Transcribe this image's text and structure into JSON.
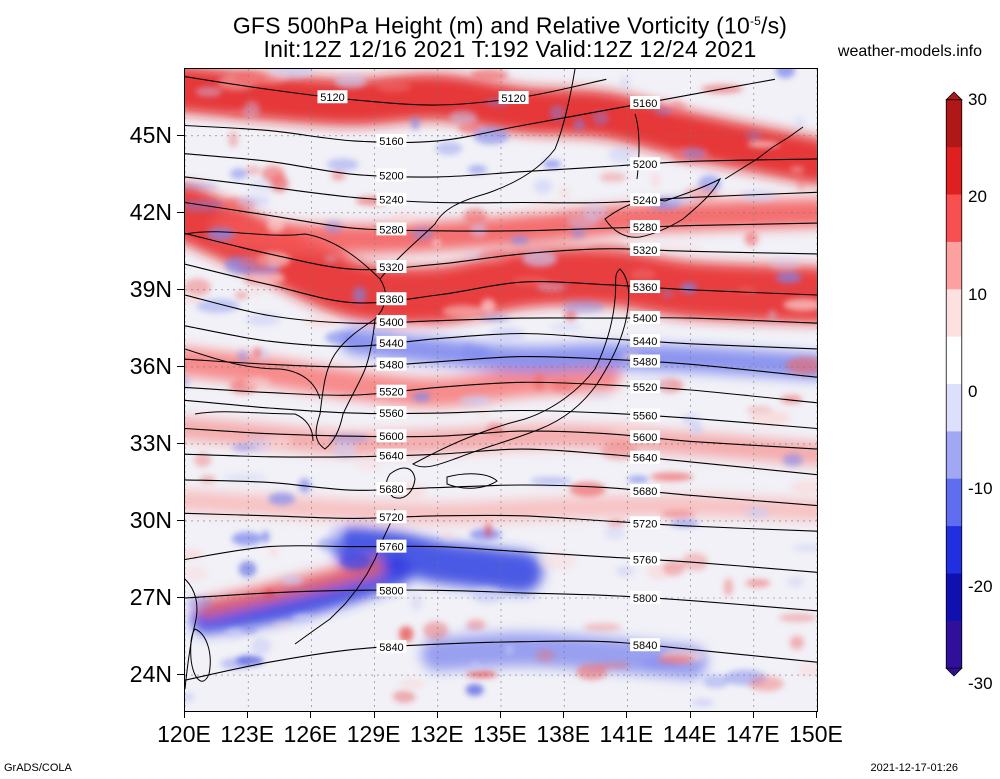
{
  "title": {
    "line1": "GFS 500hPa Height (m) and Relative Vorticity (10",
    "line1_sup": "-5",
    "line1_tail": "/s)",
    "line2": "Init:12Z 12/16 2021 T:192 Valid:12Z 12/24 2021"
  },
  "site": "weather-models.info",
  "footer": {
    "left": "GrADS/COLA",
    "right": "2021-12-17-01:26"
  },
  "axes": {
    "lat_labels": [
      "45N",
      "42N",
      "39N",
      "36N",
      "33N",
      "30N",
      "27N",
      "24N"
    ],
    "lat_values": [
      45,
      42,
      39,
      36,
      33,
      30,
      27,
      24
    ],
    "lon_labels": [
      "120E",
      "123E",
      "126E",
      "129E",
      "132E",
      "135E",
      "138E",
      "141E",
      "144E",
      "147E",
      "150E"
    ],
    "lon_values": [
      120,
      123,
      126,
      129,
      132,
      135,
      138,
      141,
      144,
      147,
      150
    ],
    "lat_range": [
      22.6,
      47.6
    ],
    "lon_range": [
      120,
      150
    ]
  },
  "colorbar": {
    "labels": [
      "30",
      "20",
      "10",
      "0",
      "-10",
      "-20",
      "-30"
    ],
    "values": [
      30,
      20,
      10,
      0,
      -10,
      -20,
      -30
    ],
    "colors_top_to_bottom": [
      "#b01818",
      "#e02020",
      "#f85050",
      "#fca0a0",
      "#fde0e0",
      "#ffffff",
      "#dde0fa",
      "#a0a8f4",
      "#5f6ef0",
      "#2030e0",
      "#1010b0",
      "#30109a"
    ]
  },
  "contours": [
    {
      "label": "5120",
      "lat": [
        47.3,
        46.8,
        46.4,
        46.2,
        46.5,
        47.2
      ],
      "lon": [
        120,
        124,
        128,
        132,
        136,
        140
      ]
    },
    {
      "label": "5160",
      "lat": [
        45.4,
        45.2,
        44.8,
        44.8,
        45.4,
        46.0,
        46.6,
        47.2
      ],
      "lon": [
        120,
        124,
        128,
        132,
        136,
        140,
        144,
        148
      ]
    },
    {
      "label": "5200",
      "lat": [
        44.3,
        44.0,
        43.5,
        43.4,
        43.6,
        43.8,
        44.0,
        44.1
      ],
      "lon": [
        120,
        124,
        128,
        132,
        136,
        140,
        144,
        150
      ]
    },
    {
      "label": "5240",
      "lat": [
        43.4,
        43.0,
        42.6,
        42.4,
        42.4,
        42.4,
        42.6,
        42.8
      ],
      "lon": [
        120,
        124,
        128,
        132,
        136,
        140,
        144,
        150
      ]
    },
    {
      "label": "5280",
      "lat": [
        42.4,
        41.9,
        41.4,
        41.3,
        41.3,
        41.4,
        41.5,
        41.6
      ],
      "lon": [
        120,
        124,
        128,
        132,
        136,
        140,
        144,
        150
      ]
    },
    {
      "label": "5320",
      "lat": [
        41.2,
        40.4,
        39.8,
        40.0,
        40.4,
        40.6,
        40.5,
        40.4
      ],
      "lon": [
        120,
        124,
        128,
        132,
        136,
        140,
        144,
        150
      ]
    },
    {
      "label": "5360",
      "lat": [
        40.0,
        39.2,
        38.5,
        38.8,
        39.3,
        39.2,
        39.0,
        38.8
      ],
      "lon": [
        120,
        124,
        128,
        132,
        136,
        140,
        144,
        150
      ]
    },
    {
      "label": "5400",
      "lat": [
        38.8,
        38.0,
        37.7,
        37.8,
        37.9,
        37.9,
        37.9,
        37.7
      ],
      "lon": [
        120,
        124,
        128,
        132,
        136,
        140,
        144,
        150
      ]
    },
    {
      "label": "5440",
      "lat": [
        37.6,
        37.0,
        36.8,
        37.1,
        37.3,
        37.1,
        36.9,
        36.7
      ],
      "lon": [
        120,
        124,
        128,
        132,
        136,
        140,
        144,
        150
      ]
    },
    {
      "label": "5480",
      "lat": [
        36.3,
        36.1,
        36.0,
        36.2,
        36.4,
        36.3,
        36.1,
        35.6
      ],
      "lon": [
        120,
        124,
        128,
        132,
        136,
        140,
        144,
        150
      ]
    },
    {
      "label": "5520",
      "lat": [
        35.2,
        35.0,
        34.9,
        35.2,
        35.4,
        35.3,
        35.1,
        34.6
      ],
      "lon": [
        120,
        124,
        128,
        132,
        136,
        140,
        144,
        150
      ]
    },
    {
      "label": "5560",
      "lat": [
        34.7,
        34.4,
        34.2,
        34.2,
        34.3,
        34.2,
        34.0,
        33.6
      ],
      "lon": [
        120,
        124,
        128,
        132,
        136,
        140,
        144,
        150
      ]
    },
    {
      "label": "5600",
      "lat": [
        33.6,
        33.4,
        33.3,
        33.3,
        33.5,
        33.4,
        33.1,
        32.8
      ],
      "lon": [
        120,
        124,
        128,
        132,
        136,
        140,
        144,
        150
      ]
    },
    {
      "label": "5640",
      "lat": [
        32.6,
        32.5,
        32.5,
        32.6,
        32.8,
        32.6,
        32.3,
        31.8
      ],
      "lon": [
        120,
        124,
        128,
        132,
        136,
        140,
        144,
        150
      ]
    },
    {
      "label": "5680",
      "lat": [
        31.6,
        31.5,
        31.2,
        31.3,
        31.4,
        31.3,
        31.0,
        30.6
      ],
      "lon": [
        120,
        124,
        128,
        132,
        136,
        140,
        144,
        150
      ]
    },
    {
      "label": "5720",
      "lat": [
        30.3,
        30.2,
        30.1,
        30.2,
        30.2,
        30.0,
        29.8,
        29.6
      ],
      "lon": [
        120,
        124,
        128,
        132,
        136,
        140,
        144,
        150
      ]
    },
    {
      "label": "5760",
      "lat": [
        28.5,
        29.0,
        29.0,
        29.0,
        28.8,
        28.6,
        28.4,
        28.0
      ],
      "lon": [
        120,
        124,
        128,
        132,
        136,
        140,
        144,
        150
      ]
    },
    {
      "label": "5800",
      "lat": [
        27.0,
        27.2,
        27.3,
        27.3,
        27.2,
        27.1,
        26.9,
        26.5
      ],
      "lon": [
        120,
        124,
        128,
        132,
        136,
        140,
        144,
        150
      ]
    },
    {
      "label": "5840",
      "lat": [
        23.8,
        24.5,
        25.0,
        25.2,
        25.3,
        25.3,
        25.0,
        24.5
      ],
      "lon": [
        120,
        124,
        128,
        132,
        136,
        140,
        144,
        150
      ]
    }
  ],
  "vorticity_bands": [
    {
      "lat": [
        42.0,
        40.5,
        39.0,
        38.8,
        39.4,
        39.5,
        39.0,
        38.8
      ],
      "lon": [
        120,
        124,
        128,
        132,
        136,
        140,
        144,
        150
      ],
      "width_deg": 2.2,
      "color": "#e81c1c"
    },
    {
      "lat": [
        46.8,
        46.5,
        46.3,
        46.5,
        46.0,
        45.8,
        45.0,
        44.0
      ],
      "lon": [
        120,
        124,
        128,
        132,
        136,
        140,
        144,
        150
      ],
      "width_deg": 1.8,
      "color": "#e41a1a"
    },
    {
      "lat": [
        41.3,
        41.0,
        41.0,
        41.2,
        41.5,
        41.8,
        42.0
      ],
      "lon": [
        122,
        126,
        130,
        134,
        138,
        142,
        150
      ],
      "width_deg": 1.1,
      "color": "#f45858"
    },
    {
      "lat": [
        36.2,
        35.8,
        35.3,
        35.0,
        35.4,
        35.6
      ],
      "lon": [
        120,
        124,
        128,
        132,
        136,
        140
      ],
      "width_deg": 1.1,
      "color": "#f87878"
    },
    {
      "lat": [
        33.6,
        33.3,
        33.0,
        33.1,
        33.3,
        33.0,
        32.6
      ],
      "lon": [
        120,
        124,
        128,
        132,
        138,
        144,
        150
      ],
      "width_deg": 0.9,
      "color": "#f6a0a0"
    },
    {
      "lat": [
        30.8,
        30.5,
        30.3,
        30.5,
        30.6,
        30.4
      ],
      "lon": [
        120,
        126,
        132,
        138,
        144,
        150
      ],
      "width_deg": 0.8,
      "color": "#f8b8b8"
    },
    {
      "lat": [
        37.0,
        36.6,
        36.3,
        36.4,
        36.3,
        36.0
      ],
      "lon": [
        128,
        132,
        136,
        140,
        144,
        150
      ],
      "width_deg": 1.0,
      "color": "#7a84ee"
    },
    {
      "lat": [
        29.0,
        28.8,
        28.4,
        28.2,
        28.0
      ],
      "lon": [
        128,
        130,
        132,
        134,
        136
      ],
      "width_deg": 1.6,
      "color": "#3040e0"
    },
    {
      "lat": [
        26.2,
        26.6,
        27.2,
        28.0
      ],
      "lon": [
        121,
        124,
        127,
        130
      ],
      "width_deg": 1.2,
      "color": "#3038e0"
    },
    {
      "lat": [
        26.6,
        27.2,
        27.8,
        28.2
      ],
      "lon": [
        121,
        124,
        127,
        129
      ],
      "width_deg": 0.7,
      "color": "#f06060"
    },
    {
      "lat": [
        24.8,
        25.0,
        24.8,
        24.5
      ],
      "lon": [
        132,
        136,
        140,
        144
      ],
      "width_deg": 1.3,
      "color": "#8a92ee"
    }
  ]
}
